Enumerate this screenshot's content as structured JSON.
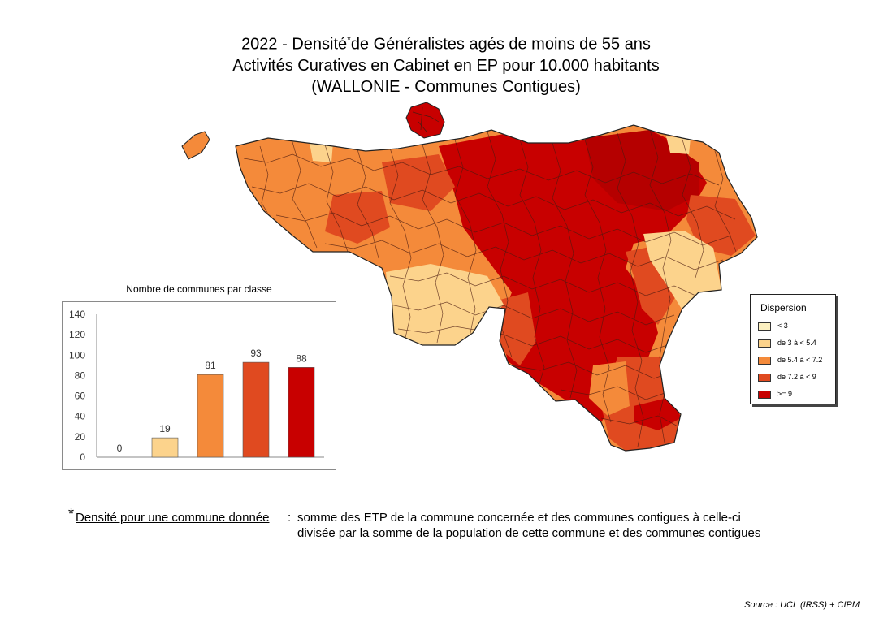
{
  "title": {
    "line1_pre": "2022 - Densité",
    "line1_star": "*",
    "line1_post": "de Généralistes agés de moins de 55 ans",
    "line2": "Activités Curatives en Cabinet en EP pour 10.000 habitants",
    "line3": "(WALLONIE - Communes Contigues)"
  },
  "colors": {
    "class1": "#fcf0c0",
    "class2": "#fcd38c",
    "class3": "#f48a3a",
    "class4": "#e04a20",
    "class5": "#c80000",
    "border": "#222222"
  },
  "legend": {
    "title": "Dispersion",
    "items": [
      {
        "label": "< 3",
        "color": "#fcf0c0"
      },
      {
        "label": "de 3 à < 5.4",
        "color": "#fcd38c"
      },
      {
        "label": "de 5.4 à < 7.2",
        "color": "#f48a3a"
      },
      {
        "label": "de 7.2 à < 9",
        "color": "#e04a20"
      },
      {
        "label": ">= 9",
        "color": "#c80000"
      }
    ]
  },
  "chart_data": {
    "type": "bar",
    "title": "Nombre de communes par classe",
    "categories": [
      "< 3",
      "de 3 à < 5.4",
      "de 5.4 à < 7.2",
      "de 7.2 à < 9",
      ">= 9"
    ],
    "values": [
      0,
      19,
      81,
      93,
      88
    ],
    "colors": [
      "#fcf0c0",
      "#fcd38c",
      "#f48a3a",
      "#e04a20",
      "#c80000"
    ],
    "ylim": [
      0,
      140
    ],
    "yticks": [
      0,
      20,
      40,
      60,
      80,
      100,
      120,
      140
    ],
    "xlabel": "",
    "ylabel": "",
    "grid": false
  },
  "footnote": {
    "star": "*",
    "term": "Densité pour une commune donnée",
    "colon": ":",
    "definition_line1": "somme des ETP de la commune concernée et des communes contigues à celle-ci",
    "definition_line2": "divisée  par la somme de la population de cette commune et des communes contigues"
  },
  "source": "Source : UCL (IRSS) + CIPM"
}
